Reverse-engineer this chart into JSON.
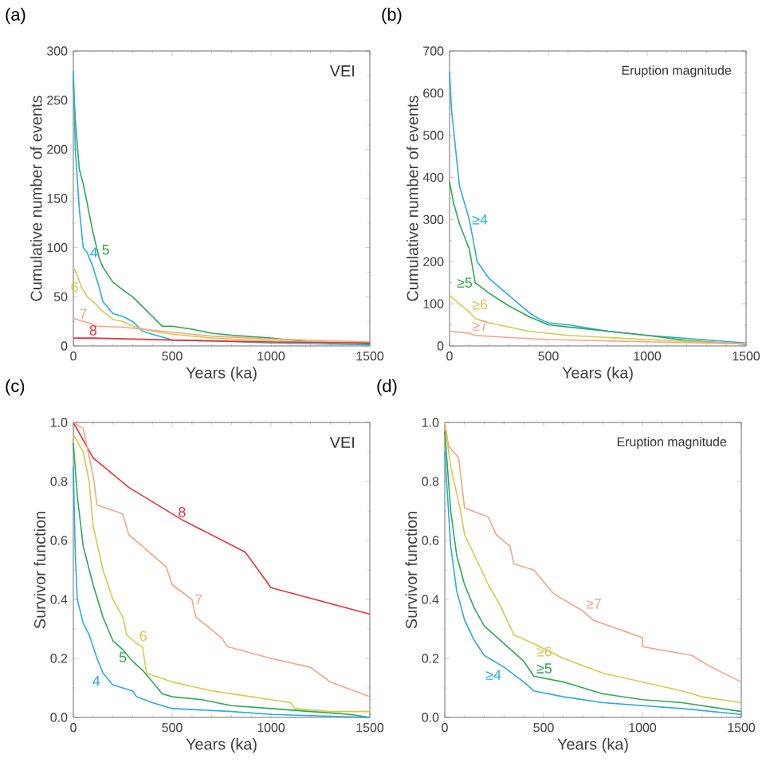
{
  "chart_data": [
    {
      "type": "line",
      "title": "(a)",
      "xlabel": "Years (ka)",
      "ylabel": "Cumulative number of events",
      "annotations": [
        "VEI"
      ],
      "xlim": [
        0,
        1500
      ],
      "ylim": [
        0,
        300
      ],
      "xticks": [
        0,
        500,
        1000,
        1500
      ],
      "yticks": [
        0,
        50,
        100,
        150,
        200,
        250,
        300
      ],
      "series": [
        {
          "name": "5",
          "color": "#2ca94f",
          "x": [
            0,
            10,
            30,
            50,
            100,
            130,
            150,
            200,
            250,
            300,
            350,
            400,
            450,
            500,
            600,
            700,
            800,
            1000,
            1200,
            1500
          ],
          "values": [
            270,
            230,
            180,
            165,
            115,
            90,
            80,
            65,
            57,
            50,
            40,
            30,
            20,
            20,
            17,
            13,
            11,
            8,
            4,
            2
          ]
        },
        {
          "name": "4",
          "color": "#29abe2",
          "x": [
            0,
            10,
            30,
            50,
            70,
            100,
            130,
            150,
            200,
            250,
            300,
            350,
            400,
            500,
            700,
            1000,
            1500
          ],
          "values": [
            280,
            200,
            140,
            100,
            95,
            80,
            60,
            45,
            33,
            30,
            25,
            15,
            12,
            6,
            5,
            3,
            1
          ]
        },
        {
          "name": "6",
          "color": "#d7c94a",
          "x": [
            0,
            20,
            40,
            70,
            100,
            150,
            200,
            250,
            300,
            400,
            500,
            700,
            1000,
            1500
          ],
          "values": [
            80,
            72,
            60,
            50,
            45,
            35,
            27,
            25,
            20,
            15,
            12,
            8,
            5,
            3
          ]
        },
        {
          "name": "7",
          "color": "#f4a582",
          "x": [
            0,
            50,
            100,
            120,
            250,
            350,
            500,
            700,
            1000,
            1500
          ],
          "values": [
            28,
            25,
            22,
            20,
            19,
            17,
            14,
            10,
            7,
            4
          ]
        },
        {
          "name": "8",
          "color": "#e8303a",
          "x": [
            0,
            100,
            500,
            1000,
            1500
          ],
          "values": [
            8,
            8,
            6,
            4,
            3
          ]
        }
      ]
    },
    {
      "type": "line",
      "title": "(b)",
      "xlabel": "Years (ka)",
      "ylabel": "Cumulative number of events",
      "annotations": [
        "Eruption magnitude"
      ],
      "xlim": [
        0,
        1500
      ],
      "ylim": [
        0,
        700
      ],
      "xticks": [
        0,
        500,
        1000,
        1500
      ],
      "yticks": [
        0,
        100,
        200,
        300,
        400,
        500,
        600,
        700
      ],
      "series": [
        {
          "name": "≥4",
          "color": "#29abe2",
          "x": [
            0,
            10,
            30,
            50,
            100,
            140,
            200,
            300,
            400,
            450,
            500,
            600,
            800,
            1000,
            1200,
            1500
          ],
          "values": [
            650,
            560,
            470,
            380,
            300,
            200,
            160,
            120,
            80,
            65,
            55,
            50,
            35,
            25,
            18,
            7
          ]
        },
        {
          "name": "≥5",
          "color": "#2ca94f",
          "x": [
            0,
            20,
            50,
            100,
            130,
            200,
            300,
            400,
            500,
            700,
            1000,
            1200,
            1500
          ],
          "values": [
            390,
            340,
            290,
            230,
            150,
            125,
            95,
            70,
            50,
            40,
            25,
            13,
            4
          ]
        },
        {
          "name": "≥6",
          "color": "#d7c94a",
          "x": [
            0,
            50,
            100,
            130,
            200,
            300,
            400,
            600,
            1000,
            1500
          ],
          "values": [
            120,
            100,
            80,
            65,
            55,
            45,
            35,
            25,
            15,
            5
          ]
        },
        {
          "name": "≥7",
          "color": "#f4a582",
          "x": [
            0,
            100,
            130,
            300,
            500,
            1000,
            1500
          ],
          "values": [
            35,
            30,
            25,
            20,
            15,
            10,
            5
          ]
        }
      ]
    },
    {
      "type": "line",
      "title": "(c)",
      "xlabel": "Years (ka)",
      "ylabel": "Survivor function",
      "annotations": [
        "VEI"
      ],
      "xlim": [
        0,
        1500
      ],
      "ylim": [
        0,
        1
      ],
      "xticks": [
        0,
        500,
        1000,
        1500
      ],
      "yticks": [
        {
          "value": 0,
          "label": "0.0"
        },
        {
          "value": 0.2,
          "label": "0.2"
        },
        {
          "value": 0.4,
          "label": "0.4"
        },
        {
          "value": 0.6,
          "label": "0.6"
        },
        {
          "value": 0.8,
          "label": "0.8"
        },
        {
          "value": 1,
          "label": "1.0"
        }
      ],
      "series": [
        {
          "name": "8",
          "color": "#e8303a",
          "x": [
            0,
            100,
            280,
            550,
            870,
            1000,
            1500
          ],
          "values": [
            1.0,
            0.88,
            0.78,
            0.67,
            0.56,
            0.44,
            0.35
          ]
        },
        {
          "name": "7",
          "color": "#f4a582",
          "x": [
            0,
            50,
            100,
            120,
            250,
            280,
            350,
            470,
            500,
            600,
            620,
            750,
            780,
            1000,
            1200,
            1300,
            1500
          ],
          "values": [
            1.0,
            0.98,
            0.82,
            0.72,
            0.69,
            0.62,
            0.58,
            0.51,
            0.45,
            0.4,
            0.34,
            0.27,
            0.24,
            0.2,
            0.17,
            0.12,
            0.07
          ]
        },
        {
          "name": "6",
          "color": "#d7c94a",
          "x": [
            0,
            50,
            80,
            100,
            150,
            200,
            250,
            270,
            320,
            350,
            370,
            500,
            700,
            800,
            1000,
            1100,
            1120,
            1300,
            1500
          ],
          "values": [
            0.96,
            0.9,
            0.8,
            0.65,
            0.5,
            0.4,
            0.34,
            0.28,
            0.25,
            0.24,
            0.15,
            0.12,
            0.09,
            0.08,
            0.06,
            0.05,
            0.03,
            0.02,
            0.02
          ]
        },
        {
          "name": "5",
          "color": "#2ca94f",
          "x": [
            0,
            20,
            50,
            100,
            150,
            200,
            250,
            300,
            350,
            400,
            450,
            500,
            650,
            800,
            1000,
            1200,
            1400,
            1500
          ],
          "values": [
            0.93,
            0.75,
            0.58,
            0.45,
            0.34,
            0.26,
            0.23,
            0.19,
            0.16,
            0.12,
            0.08,
            0.07,
            0.06,
            0.04,
            0.03,
            0.02,
            0.01,
            0.0
          ]
        },
        {
          "name": "4",
          "color": "#29abe2",
          "x": [
            0,
            10,
            20,
            50,
            80,
            120,
            150,
            200,
            300,
            320,
            400,
            500,
            800,
            1000,
            1500
          ],
          "values": [
            0.85,
            0.55,
            0.4,
            0.32,
            0.28,
            0.2,
            0.15,
            0.11,
            0.09,
            0.07,
            0.05,
            0.03,
            0.02,
            0.01,
            0.0
          ]
        }
      ]
    },
    {
      "type": "line",
      "title": "(d)",
      "xlabel": "Years (ka)",
      "ylabel": "Survivor function",
      "annotations": [
        "Eruption magnitude"
      ],
      "xlim": [
        0,
        1500
      ],
      "ylim": [
        0,
        1
      ],
      "xticks": [
        0,
        500,
        1000,
        1500
      ],
      "yticks": [
        {
          "value": 0,
          "label": "0.0"
        },
        {
          "value": 0.2,
          "label": "0.2"
        },
        {
          "value": 0.4,
          "label": "0.4"
        },
        {
          "value": 0.6,
          "label": "0.6"
        },
        {
          "value": 0.8,
          "label": "0.8"
        },
        {
          "value": 1,
          "label": "1.0"
        }
      ],
      "series": [
        {
          "name": "≥7",
          "color": "#f4a582",
          "x": [
            0,
            20,
            70,
            100,
            220,
            260,
            330,
            350,
            450,
            550,
            700,
            750,
            1000,
            1000,
            1250,
            1350,
            1500
          ],
          "values": [
            1.0,
            0.92,
            0.88,
            0.71,
            0.68,
            0.62,
            0.58,
            0.52,
            0.5,
            0.42,
            0.36,
            0.33,
            0.27,
            0.24,
            0.21,
            0.17,
            0.12
          ]
        },
        {
          "name": "≥6",
          "color": "#d7c94a",
          "x": [
            0,
            30,
            80,
            100,
            150,
            220,
            280,
            350,
            450,
            600,
            800,
            1000,
            1200,
            1300,
            1500
          ],
          "values": [
            1.0,
            0.85,
            0.7,
            0.62,
            0.55,
            0.45,
            0.38,
            0.28,
            0.25,
            0.2,
            0.15,
            0.12,
            0.09,
            0.07,
            0.05
          ]
        },
        {
          "name": "≥5",
          "color": "#2ca94f",
          "x": [
            0,
            30,
            60,
            100,
            150,
            200,
            300,
            400,
            450,
            600,
            800,
            1000,
            1200,
            1500
          ],
          "values": [
            0.97,
            0.7,
            0.55,
            0.45,
            0.37,
            0.31,
            0.25,
            0.19,
            0.14,
            0.12,
            0.08,
            0.06,
            0.05,
            0.02
          ]
        },
        {
          "name": "≥4",
          "color": "#29abe2",
          "x": [
            0,
            30,
            60,
            100,
            150,
            200,
            300,
            400,
            450,
            600,
            800,
            1000,
            1200,
            1500
          ],
          "values": [
            0.9,
            0.58,
            0.43,
            0.33,
            0.26,
            0.21,
            0.17,
            0.12,
            0.09,
            0.07,
            0.05,
            0.04,
            0.03,
            0.01
          ]
        }
      ]
    }
  ]
}
